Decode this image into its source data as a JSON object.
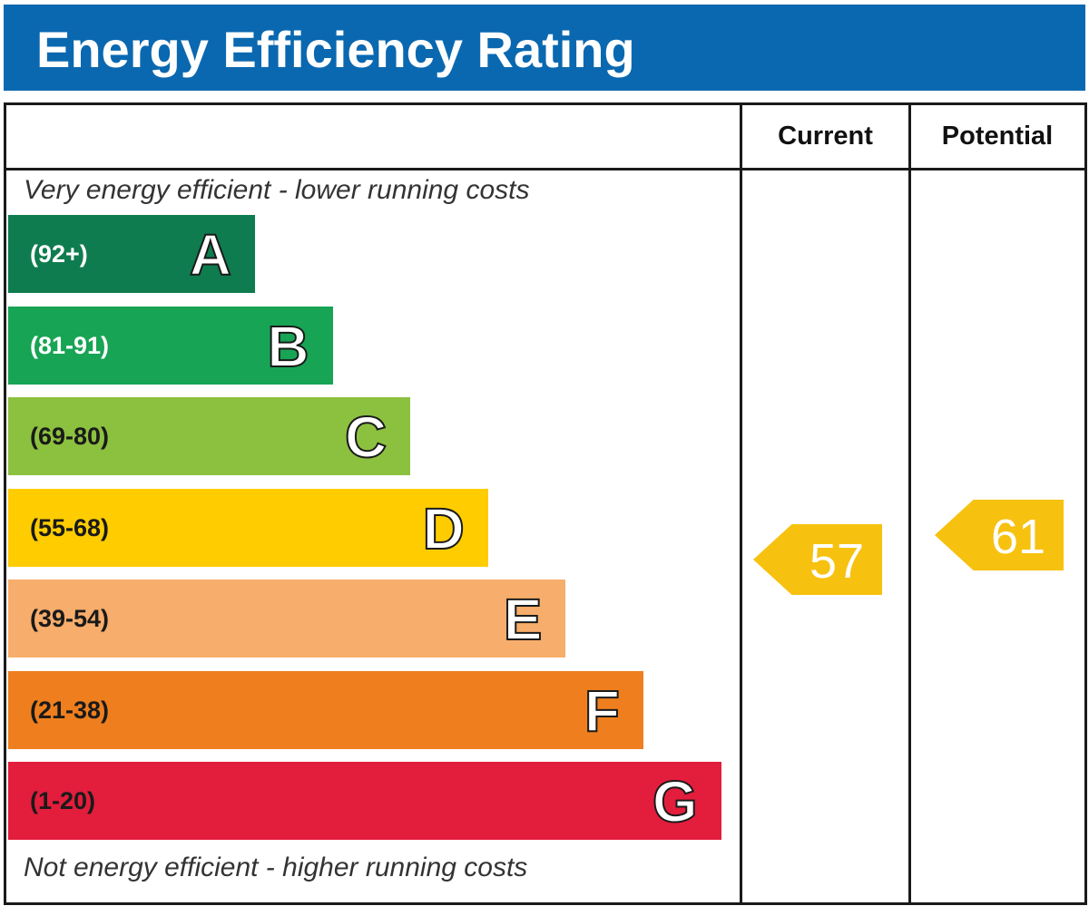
{
  "title": "Energy Efficiency Rating",
  "columns": {
    "current": "Current",
    "potential": "Potential"
  },
  "captions": {
    "top": "Very energy efficient - lower running costs",
    "bottom": "Not energy efficient - higher running costs"
  },
  "chart_data": {
    "type": "bar",
    "title": "Energy Efficiency Rating",
    "categories": [
      "A",
      "B",
      "C",
      "D",
      "E",
      "F",
      "G"
    ],
    "bands": [
      {
        "letter": "A",
        "range": "(92+)",
        "color": "#0e7c4f",
        "range_color": "#ffffff"
      },
      {
        "letter": "B",
        "range": "(81-91)",
        "color": "#17a454",
        "range_color": "#ffffff"
      },
      {
        "letter": "C",
        "range": "(69-80)",
        "color": "#8cc13f",
        "range_color": "#1a1a1a"
      },
      {
        "letter": "D",
        "range": "(55-68)",
        "color": "#ffcc00",
        "range_color": "#1a1a1a"
      },
      {
        "letter": "E",
        "range": "(39-54)",
        "color": "#f7ad6b",
        "range_color": "#1a1a1a"
      },
      {
        "letter": "F",
        "range": "(21-38)",
        "color": "#ef7f1e",
        "range_color": "#1a1a1a"
      },
      {
        "letter": "G",
        "range": "(1-20)",
        "color": "#e31d3c",
        "range_color": "#1a1a1a"
      }
    ],
    "series": [
      {
        "name": "Current",
        "value": 57,
        "band": "D",
        "color": "#f7c10f"
      },
      {
        "name": "Potential",
        "value": 61,
        "band": "D",
        "color": "#f7c10f"
      }
    ]
  }
}
